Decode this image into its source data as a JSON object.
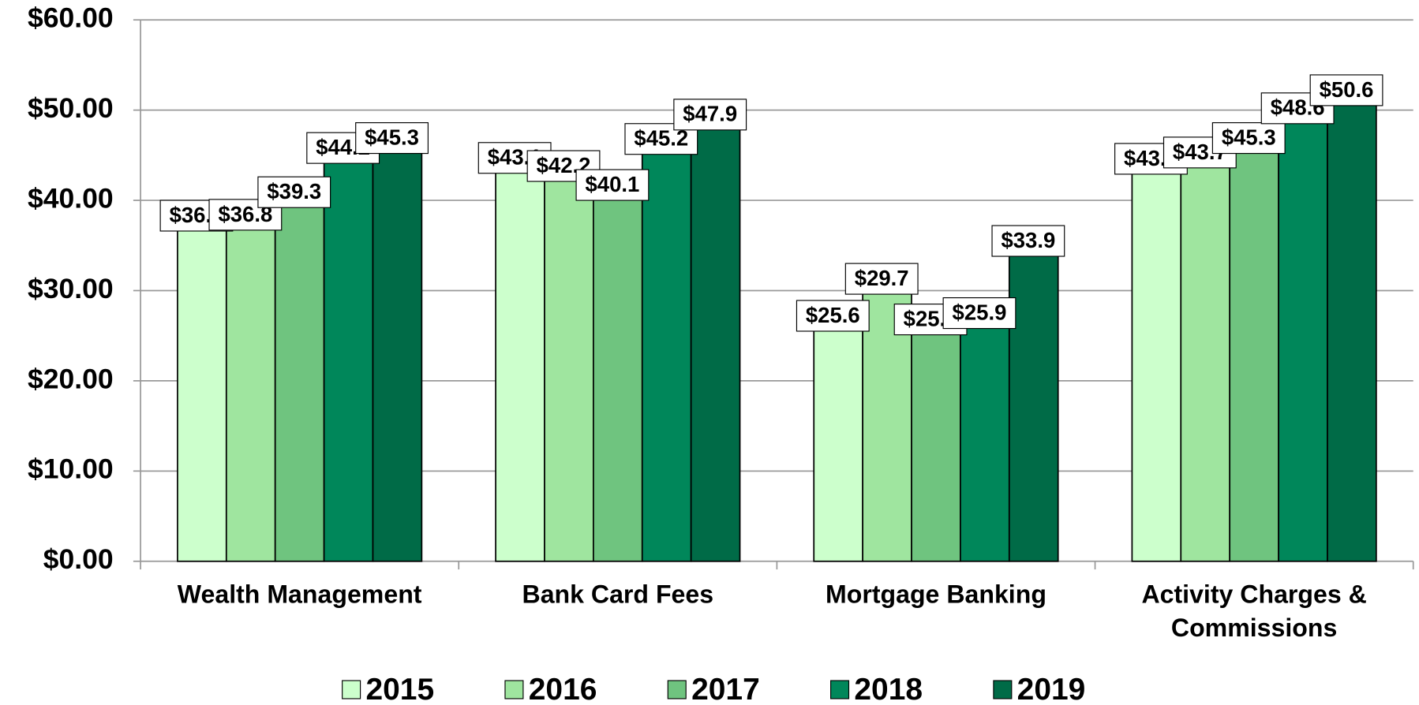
{
  "chart_data": {
    "type": "bar",
    "categories": [
      "Wealth Management",
      "Bank Card Fees",
      "Mortgage Banking",
      "Activity Charges & Commissions"
    ],
    "series": [
      {
        "name": "2015",
        "color": "#ccffcc",
        "values": [
          36.7,
          43.1,
          25.6,
          43.0
        ],
        "value_labels": [
          "$36.7",
          "$43.1",
          "$25.6",
          "$43.0"
        ]
      },
      {
        "name": "2016",
        "color": "#9fe59f",
        "values": [
          36.8,
          42.2,
          29.7,
          43.7
        ],
        "value_labels": [
          "$36.8",
          "$42.2",
          "$29.7",
          "$43.7"
        ]
      },
      {
        "name": "2017",
        "color": "#6fc47f",
        "values": [
          39.3,
          40.1,
          25.2,
          45.3
        ],
        "value_labels": [
          "$39.3",
          "$40.1",
          "$25.2",
          "$45.3"
        ]
      },
      {
        "name": "2018",
        "color": "#00875a",
        "values": [
          44.2,
          45.2,
          25.9,
          48.6
        ],
        "value_labels": [
          "$44.2",
          "$45.2",
          "$25.9",
          "$48.6"
        ]
      },
      {
        "name": "2019",
        "color": "#006b47",
        "values": [
          45.3,
          47.9,
          33.9,
          50.6
        ],
        "value_labels": [
          "$45.3",
          "$47.9",
          "$33.9",
          "$50.6"
        ]
      }
    ],
    "ylim": [
      0,
      60
    ],
    "yticks": [
      {
        "value": 0,
        "label": "$0.00"
      },
      {
        "value": 10,
        "label": "$10.00"
      },
      {
        "value": 20,
        "label": "$20.00"
      },
      {
        "value": 30,
        "label": "$30.00"
      },
      {
        "value": 40,
        "label": "$40.00"
      },
      {
        "value": 50,
        "label": "$50.00"
      },
      {
        "value": 60,
        "label": "$60.00"
      }
    ],
    "grid": true,
    "legend": "bottom"
  }
}
